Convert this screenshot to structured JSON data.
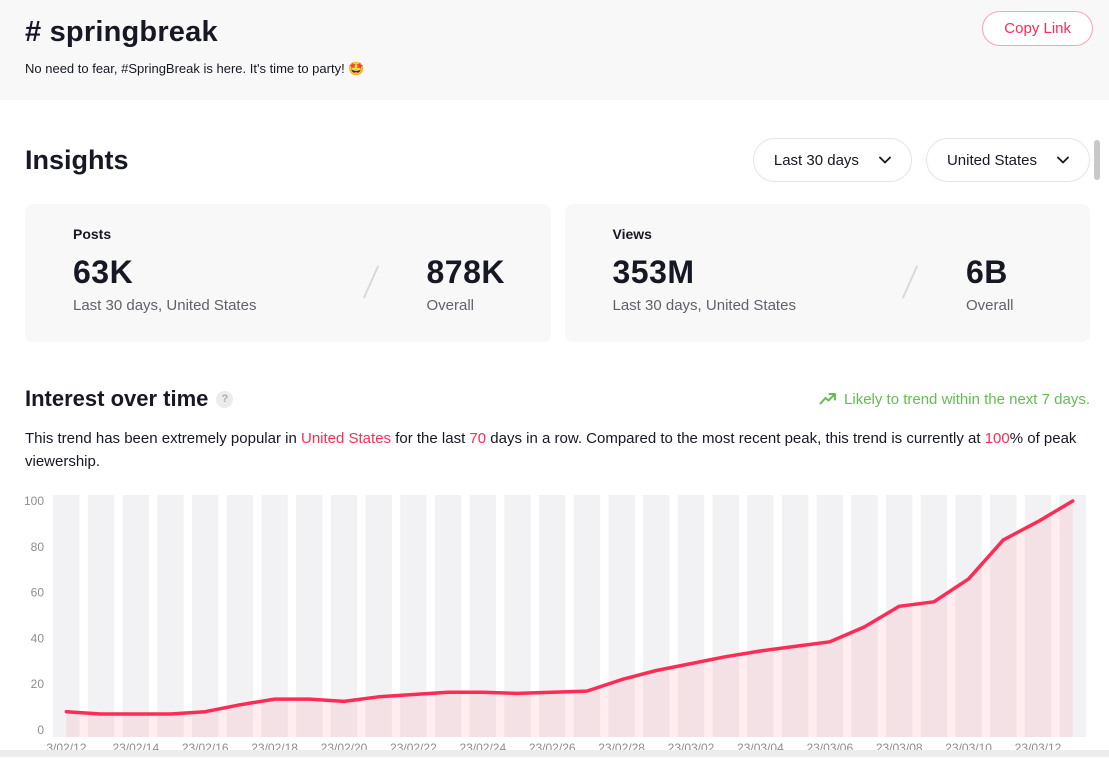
{
  "header": {
    "title": "# springbreak",
    "subtitle": "No need to fear, #SpringBreak is here. It's time to party! 🤩",
    "copy_link_label": "Copy Link"
  },
  "insights": {
    "title": "Insights",
    "filters": [
      {
        "label": "Last 30 days"
      },
      {
        "label": "United States"
      }
    ],
    "cards": [
      {
        "label": "Posts",
        "primary_value": "63K",
        "primary_caption": "Last 30 days, United States",
        "secondary_value": "878K",
        "secondary_caption": "Overall"
      },
      {
        "label": "Views",
        "primary_value": "353M",
        "primary_caption": "Last 30 days, United States",
        "secondary_value": "6B",
        "secondary_caption": "Overall"
      }
    ]
  },
  "interest": {
    "title": "Interest over time",
    "help_glyph": "?",
    "trend_note": "Likely to trend within the next 7 days.",
    "description": {
      "part1": "This trend has been extremely popular in ",
      "country": "United States",
      "part2": " for the last ",
      "days": "70",
      "part3": " days in a row. Compared to the most recent peak, this trend is currently at ",
      "percent": "100",
      "part4": "% of peak viewership."
    }
  },
  "chart_data": {
    "type": "area",
    "title": "Interest over time",
    "values": [
      8,
      7,
      7,
      7,
      8,
      11,
      13.5,
      13.5,
      12.5,
      14.5,
      15.5,
      16.5,
      16.5,
      16,
      16.5,
      17,
      22,
      26,
      29,
      32,
      34.5,
      36.5,
      38.5,
      45,
      54,
      56,
      66,
      83,
      91,
      100
    ],
    "tick_labels": [
      "3/02/12",
      "23/02/14",
      "23/02/16",
      "23/02/18",
      "23/02/20",
      "23/02/22",
      "23/02/24",
      "23/02/26",
      "23/02/28",
      "23/03/02",
      "23/03/04",
      "23/03/06",
      "23/03/08",
      "23/03/10",
      "23/03/12"
    ],
    "tick_every": 2,
    "y_ticks": [
      0,
      20,
      40,
      60,
      80,
      100
    ],
    "ylim": [
      0,
      100
    ],
    "xlabel": "",
    "ylabel": "",
    "grid": false,
    "legend": false,
    "line_color": "#fe2c55",
    "area_opacity": 0.085,
    "bar_color": "#f2f2f4"
  },
  "colors": {
    "accent_pink": "#fe2c55",
    "trend_green": "#62be50",
    "text": "#161823",
    "card_bg": "#f8f8f8"
  }
}
